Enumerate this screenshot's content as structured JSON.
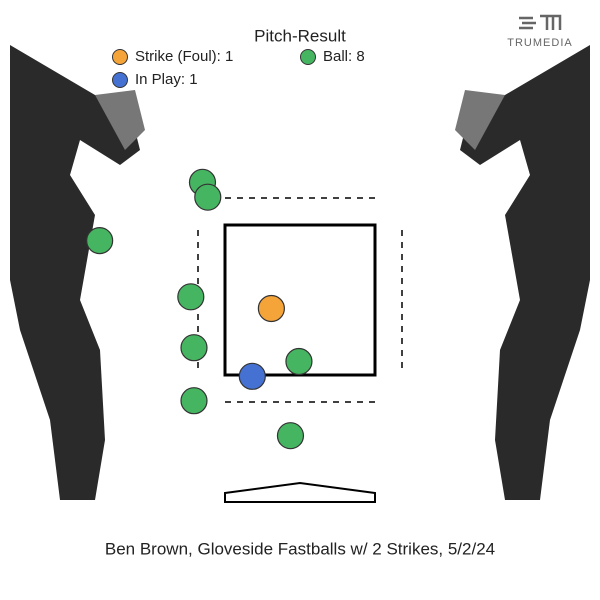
{
  "chart_data": {
    "type": "scatter",
    "title": "Pitch-Result",
    "caption": "Ben Brown, Gloveside Fastballs w/ 2 Strikes, 5/2/24",
    "logo": "TRUMEDIA",
    "xlim": [
      -2.83,
      2.83
    ],
    "ylim": [
      -0.33,
      5.33
    ],
    "series": [
      {
        "name": "Strike (Foul): 1",
        "color": "#f5a43a",
        "x": [
          -0.27
        ],
        "values": [
          2.42
        ]
      },
      {
        "name": "Ball: 8",
        "color": "#45b561",
        "x": [
          -0.92,
          -0.87,
          -1.89,
          -1.03,
          -1.0,
          -1.0,
          -0.01,
          -0.09
        ],
        "values": [
          3.61,
          3.47,
          3.06,
          2.53,
          2.05,
          1.55,
          1.92,
          1.22
        ]
      },
      {
        "name": "In Play: 1",
        "color": "#4471d2",
        "x": [
          -0.45
        ],
        "values": [
          1.78
        ]
      }
    ]
  }
}
